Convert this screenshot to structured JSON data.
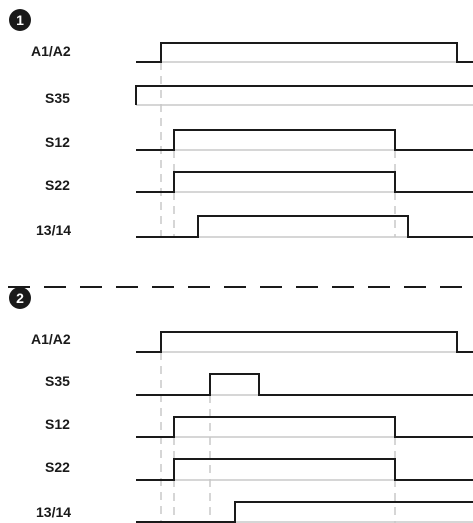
{
  "section1": {
    "badge": "1",
    "signals": [
      {
        "label": "A1/A2",
        "levels": [
          0,
          1,
          0
        ]
      },
      {
        "label": "S35",
        "levels": [
          1
        ]
      },
      {
        "label": "S12",
        "levels": [
          0,
          1,
          0
        ]
      },
      {
        "label": "S22",
        "levels": [
          0,
          1,
          0
        ]
      },
      {
        "label": "13/14",
        "levels": [
          0,
          1,
          0
        ]
      }
    ]
  },
  "section2": {
    "badge": "2",
    "signals": [
      {
        "label": "A1/A2",
        "levels": [
          0,
          1,
          0
        ]
      },
      {
        "label": "S35",
        "levels": [
          0,
          1,
          0
        ]
      },
      {
        "label": "S12",
        "levels": [
          0,
          1,
          0
        ]
      },
      {
        "label": "S22",
        "levels": [
          0,
          1,
          0
        ]
      },
      {
        "label": "13/14",
        "levels": [
          0,
          1
        ]
      }
    ]
  }
}
